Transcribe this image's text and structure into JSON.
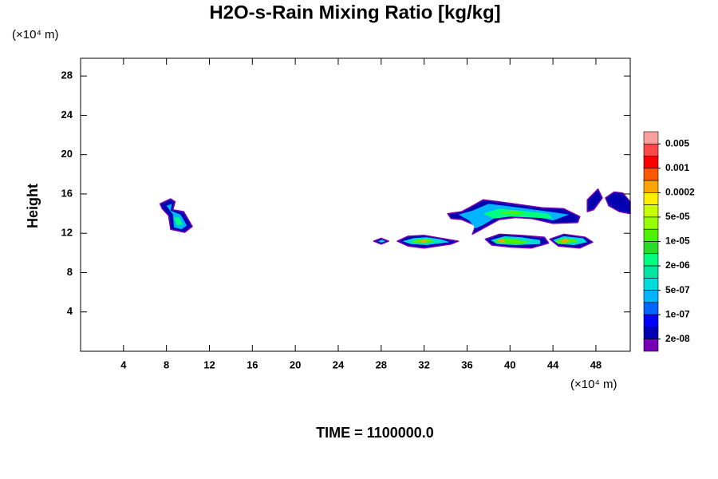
{
  "chart_data": {
    "type": "contour",
    "title": "H2O-s-Rain Mixing Ratio [kg/kg]",
    "y_label": "Height",
    "y_unit": "(×10⁴ m)",
    "x_unit": "(×10⁴ m)",
    "annotation": "TIME = 1100000.0",
    "xlim": [
      0,
      51.2
    ],
    "ylim": [
      0,
      29.8
    ],
    "xticks": [
      4,
      8,
      12,
      16,
      20,
      24,
      28,
      32,
      36,
      40,
      44,
      48
    ],
    "yticks": [
      4,
      8,
      12,
      16,
      20,
      24,
      28
    ],
    "colorbar": {
      "colors": [
        "#ff9f9f",
        "#ff4848",
        "#ff0000",
        "#ff5a00",
        "#ffa500",
        "#ffee00",
        "#c8ff00",
        "#96ff00",
        "#50f000",
        "#28dc28",
        "#00ff80",
        "#00e6a0",
        "#00dcdc",
        "#00b4ff",
        "#0064ff",
        "#0000ff",
        "#0000b0",
        "#7800b4"
      ],
      "ticks": [
        0.005,
        0.001,
        0.0002,
        {
          "value": 5e-05,
          "label": "5e-05"
        },
        {
          "value": 1e-05,
          "label": "1e-05"
        },
        {
          "value": 2e-06,
          "label": "2e-06"
        },
        {
          "value": 5e-07,
          "label": "5e-07"
        },
        {
          "value": 1e-07,
          "label": "1e-07"
        },
        {
          "value": 2e-08,
          "label": "2e-08"
        }
      ]
    },
    "regions": [
      {
        "level": 16,
        "x": [
          7.4,
          8.4,
          8.8,
          8.6,
          9.6,
          10.4,
          9.7,
          8.4,
          8.2,
          7.6
        ],
        "y": [
          15.0,
          15.5,
          15.2,
          14.4,
          14.2,
          12.7,
          12.1,
          12.4,
          13.8,
          14.5
        ]
      },
      {
        "level": 13,
        "x": [
          8.0,
          8.5,
          8.4,
          9.3,
          9.9,
          9.4,
          8.7,
          8.6
        ],
        "y": [
          14.8,
          15.0,
          14.3,
          13.9,
          12.8,
          12.4,
          12.6,
          13.9
        ]
      },
      {
        "level": 10,
        "x": [
          8.7,
          9.2,
          9.5,
          9.0
        ],
        "y": [
          13.6,
          13.6,
          12.9,
          12.8
        ]
      },
      {
        "level": 16,
        "x": [
          27.3,
          28.0,
          28.7,
          28.0
        ],
        "y": [
          11.2,
          11.5,
          11.2,
          10.9
        ]
      },
      {
        "level": 12,
        "x": [
          27.7,
          28.1,
          28.4,
          28.0
        ],
        "y": [
          11.2,
          11.35,
          11.2,
          11.05
        ]
      },
      {
        "level": 16,
        "x": [
          29.5,
          30.5,
          32,
          33,
          35.2,
          34.5,
          32,
          30.5
        ],
        "y": [
          11.2,
          11.7,
          11.8,
          11.6,
          11.2,
          10.9,
          10.5,
          10.7
        ]
      },
      {
        "level": 12,
        "x": [
          30.0,
          31,
          32.2,
          33.5,
          34.4,
          32.2,
          30.8
        ],
        "y": [
          11.2,
          11.5,
          11.6,
          11.4,
          11.1,
          10.8,
          10.9
        ]
      },
      {
        "level": 8,
        "x": [
          30.8,
          31.5,
          32.3,
          33,
          32.3,
          31.2
        ],
        "y": [
          11.2,
          11.4,
          11.45,
          11.2,
          11.0,
          11.0
        ]
      },
      {
        "level": 4,
        "x": [
          31.6,
          32,
          32.3,
          31.9
        ],
        "y": [
          11.2,
          11.35,
          11.2,
          11.05
        ]
      },
      {
        "level": 16,
        "x": [
          37.7,
          39,
          41,
          43.2,
          43.6,
          42,
          40,
          38.3
        ],
        "y": [
          11.4,
          11.9,
          11.8,
          11.6,
          11.0,
          10.5,
          10.6,
          10.8
        ]
      },
      {
        "level": 12,
        "x": [
          38.2,
          39.5,
          41,
          42.8,
          42.8,
          40.5,
          38.8
        ],
        "y": [
          11.3,
          11.7,
          11.6,
          11.3,
          10.9,
          10.8,
          10.9
        ]
      },
      {
        "level": 8,
        "x": [
          38.5,
          39.5,
          40.5,
          42,
          41,
          39
        ],
        "y": [
          11.2,
          11.5,
          11.4,
          11.1,
          10.95,
          11.0
        ]
      },
      {
        "level": 4,
        "x": [
          38.8,
          39.3,
          39.6,
          39.1
        ],
        "y": [
          11.3,
          11.4,
          11.2,
          11.1
        ]
      },
      {
        "level": 16,
        "x": [
          43.7,
          45,
          47,
          47.7,
          46.5,
          44.5
        ],
        "y": [
          11.4,
          11.9,
          11.6,
          11.1,
          10.5,
          10.7
        ]
      },
      {
        "level": 12,
        "x": [
          44,
          45,
          46.8,
          47.2,
          46,
          44.5
        ],
        "y": [
          11.3,
          11.7,
          11.5,
          11.1,
          10.8,
          10.9
        ]
      },
      {
        "level": 8,
        "x": [
          44.2,
          45,
          46,
          46.4,
          45,
          44.4
        ],
        "y": [
          11.2,
          11.5,
          11.4,
          11.1,
          10.95,
          11.0
        ]
      },
      {
        "level": 4,
        "x": [
          44.7,
          45.2,
          45.5,
          45
        ],
        "y": [
          11.25,
          11.45,
          11.2,
          11.0
        ]
      },
      {
        "level": 16,
        "x": [
          34.2,
          35.5,
          36.2,
          37.5,
          39,
          43,
          45,
          46.5,
          46.3,
          44,
          42,
          40.5,
          39,
          37.5,
          36.5,
          36.8,
          35.5,
          34.5
        ],
        "y": [
          14.0,
          14.2,
          14.6,
          15.4,
          15.2,
          14.6,
          14.5,
          13.7,
          13.1,
          13.0,
          13.5,
          13.6,
          13.4,
          12.5,
          11.9,
          12.8,
          13.4,
          13.5
        ]
      },
      {
        "level": 13,
        "x": [
          35.2,
          36.5,
          38,
          39.5,
          43,
          45.5,
          44,
          42,
          40.5,
          38.8,
          37.6,
          36.8,
          36.2
        ],
        "y": [
          13.9,
          14.3,
          15.0,
          14.8,
          14.3,
          13.9,
          13.3,
          13.8,
          13.9,
          13.7,
          12.9,
          12.5,
          13.3
        ]
      },
      {
        "level": 10,
        "x": [
          37.5,
          39,
          41,
          43.5,
          44,
          42,
          40,
          38.5
        ],
        "y": [
          14.0,
          14.5,
          14.3,
          14.0,
          13.5,
          13.6,
          13.7,
          13.5
        ]
      },
      {
        "level": 8,
        "x": [
          39,
          40.3,
          41.5,
          40.5
        ],
        "y": [
          14.1,
          14.3,
          14.0,
          13.9
        ]
      },
      {
        "level": 16,
        "x": [
          47.2,
          48.2,
          48.6,
          47.8,
          47.2
        ],
        "y": [
          15.4,
          16.5,
          15.6,
          14.4,
          14.2
        ]
      },
      {
        "level": 16,
        "x": [
          48.9,
          49.7,
          50.5,
          51.2,
          51.2,
          50.2,
          49.2
        ],
        "y": [
          15.6,
          16.2,
          16.1,
          15.2,
          14.0,
          14.2,
          14.8
        ]
      }
    ]
  }
}
